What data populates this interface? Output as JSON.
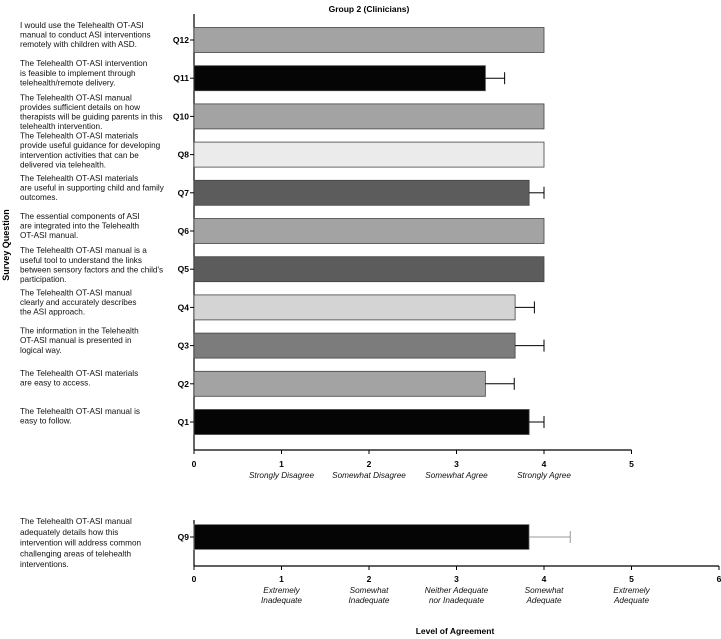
{
  "chart_data": [
    {
      "type": "bar",
      "orientation": "horizontal",
      "title": "Group 2 (Clinicians)",
      "ylabel": "Survey Question",
      "xlim": [
        0,
        5
      ],
      "xticks": [
        "0",
        "1",
        "2",
        "3",
        "4",
        "5"
      ],
      "xtick_categories": [
        "Strongly Disagree",
        "Somewhat Disagree",
        "Somewhat Agree",
        "Strongly Agree"
      ],
      "bars": [
        {
          "question": "Q12",
          "label": "I would use the Telehealth OT-ASI manual to conduct ASI interventions remotely with children with ASD.",
          "lines": [
            "I would use the Telehealth OT-ASI",
            "manual to conduct ASI interventions",
            "remotely with children with ASD."
          ],
          "value": 4.0,
          "error": 0,
          "color": "#a3a3a3"
        },
        {
          "question": "Q11",
          "label": "The Telehealth OT-ASI intervention is feasible to implement through telehealth/remote delivery.",
          "lines": [
            "The Telehealth OT-ASI intervention",
            "is feasible to implement through",
            "telehealth/remote delivery."
          ],
          "value": 3.33,
          "error": 0.22,
          "color": "#050505"
        },
        {
          "question": "Q10",
          "label": "The Telehealth OT-ASI manual provides sufficient details on how therapists will be guiding parents in this telehealth intervention.",
          "lines": [
            "The Telehealth OT-ASI manual",
            "provides sufficient details on how",
            "therapists will be guiding parents in this",
            "telehealth intervention."
          ],
          "value": 4.0,
          "error": 0,
          "color": "#a3a3a3"
        },
        {
          "question": "Q8",
          "label": "The Telehealth OT-ASI materials provide useful guidance for developing intervention activities that can be delivered via telehealth.",
          "lines": [
            "The Telehealth OT-ASI materials",
            "provide useful guidance for developing",
            "intervention activities that can be",
            "delivered via telehealth."
          ],
          "value": 4.0,
          "error": 0,
          "color": "#ebebeb"
        },
        {
          "question": "Q7",
          "label": "The Telehealth OT-ASI materials are useful in supporting child and family outcomes.",
          "lines": [
            "The Telehealth OT-ASI materials",
            "are useful in supporting child and family",
            "outcomes."
          ],
          "value": 3.83,
          "error": 0.17,
          "color": "#5c5c5c"
        },
        {
          "question": "Q6",
          "label": "The essential components of ASI are integrated into the Telehealth OT-ASI manual.",
          "lines": [
            "The essential components of ASI",
            "are integrated into the Telehealth",
            "OT-ASI manual."
          ],
          "value": 4.0,
          "error": 0,
          "color": "#a3a3a3"
        },
        {
          "question": "Q5",
          "label": "The Telehealth OT-ASI manual is a useful tool to understand the links between sensory factors and the child's participation.",
          "lines": [
            "The Telehealth OT-ASI manual is a",
            "useful tool to understand the links",
            "between sensory factors and the child's",
            "participation."
          ],
          "value": 4.0,
          "error": 0,
          "color": "#5c5c5c"
        },
        {
          "question": "Q4",
          "label": "The Telehealth OT-ASI manual clearly and accurately describes the ASI approach.",
          "lines": [
            "The Telehealth OT-ASI manual",
            "clearly and accurately describes",
            "the ASI approach."
          ],
          "value": 3.67,
          "error": 0.22,
          "color": "#d4d4d4"
        },
        {
          "question": "Q3",
          "label": "The information in the Telehealth OT-ASI manual is presented in logical way.",
          "lines": [
            "The information in the Telehealth",
            "OT-ASI manual is presented in",
            "logical way."
          ],
          "value": 3.67,
          "error": 0.33,
          "color": "#7c7c7c"
        },
        {
          "question": "Q2",
          "label": "The Telehealth OT-ASI materials are easy to access.",
          "lines": [
            "The Telehealth OT-ASI materials",
            "are easy to access."
          ],
          "value": 3.33,
          "error": 0.33,
          "color": "#a3a3a3"
        },
        {
          "question": "Q1",
          "label": "The Telehealth OT-ASI manual is easy to follow.",
          "lines": [
            "The Telehealth OT-ASI manual is",
            "easy to follow."
          ],
          "value": 3.83,
          "error": 0.17,
          "color": "#050505"
        }
      ]
    },
    {
      "type": "bar",
      "orientation": "horizontal",
      "xlabel": "Level of Agreement",
      "xlim": [
        0,
        6
      ],
      "xticks": [
        "0",
        "1",
        "2",
        "3",
        "4",
        "5",
        "6"
      ],
      "xtick_categories": [
        [
          "Extremely",
          "Inadequate"
        ],
        [
          "Somewhat",
          "Inadequate"
        ],
        [
          "Neither Adequate",
          "nor Inadequate"
        ],
        [
          "Somewhat",
          "Adequate"
        ],
        [
          "Extremely",
          "Adequate"
        ]
      ],
      "bars": [
        {
          "question": "Q9",
          "label": "The Telehealth OT-ASI manual adequately details how this intervention will address common challenging areas of telehealth interventions.",
          "lines": [
            "The Telehealth OT-ASI manual",
            "adequately details how this",
            "intervention will address common",
            "challenging areas of telehealth",
            "interventions."
          ],
          "value": 3.83,
          "error": 0.47,
          "color": "#050505",
          "error_color": "#999999"
        }
      ]
    }
  ]
}
